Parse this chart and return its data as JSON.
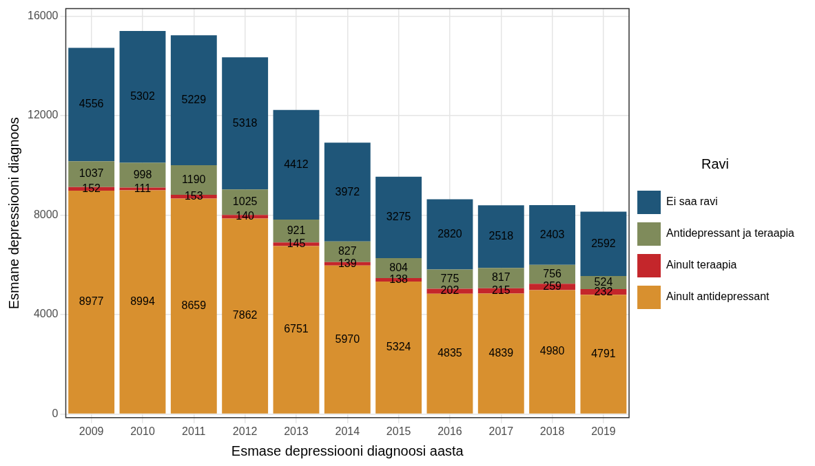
{
  "chart_data": {
    "type": "bar",
    "stacked": true,
    "xlabel": "Esmase depressiooni diagnoosi aasta",
    "ylabel": "Esmane depressiooni diagnoos",
    "legend_title": "Ravi",
    "legend": "right",
    "grid": true,
    "data_labels": true,
    "categories": [
      "2009",
      "2010",
      "2011",
      "2012",
      "2013",
      "2014",
      "2015",
      "2016",
      "2017",
      "2018",
      "2019"
    ],
    "ylim": [
      -150,
      16300
    ],
    "yticks": [
      0,
      4000,
      8000,
      12000,
      16000
    ],
    "series": [
      {
        "name": "Ainult antidepressant",
        "color": "#d8902f",
        "values": [
          8977,
          8994,
          8659,
          7862,
          6751,
          5970,
          5324,
          4835,
          4839,
          4980,
          4791
        ]
      },
      {
        "name": "Ainult teraapia",
        "color": "#c4262b",
        "values": [
          152,
          111,
          153,
          140,
          145,
          139,
          138,
          202,
          215,
          259,
          232
        ]
      },
      {
        "name": "Antidepressant ja teraapia",
        "color": "#7f8b5b",
        "values": [
          1037,
          998,
          1190,
          1025,
          921,
          827,
          804,
          775,
          817,
          756,
          524
        ]
      },
      {
        "name": "Ei saa ravi",
        "color": "#1f5679",
        "values": [
          4556,
          5302,
          5229,
          5318,
          4412,
          3972,
          3275,
          2820,
          2518,
          2403,
          2592
        ]
      }
    ]
  }
}
